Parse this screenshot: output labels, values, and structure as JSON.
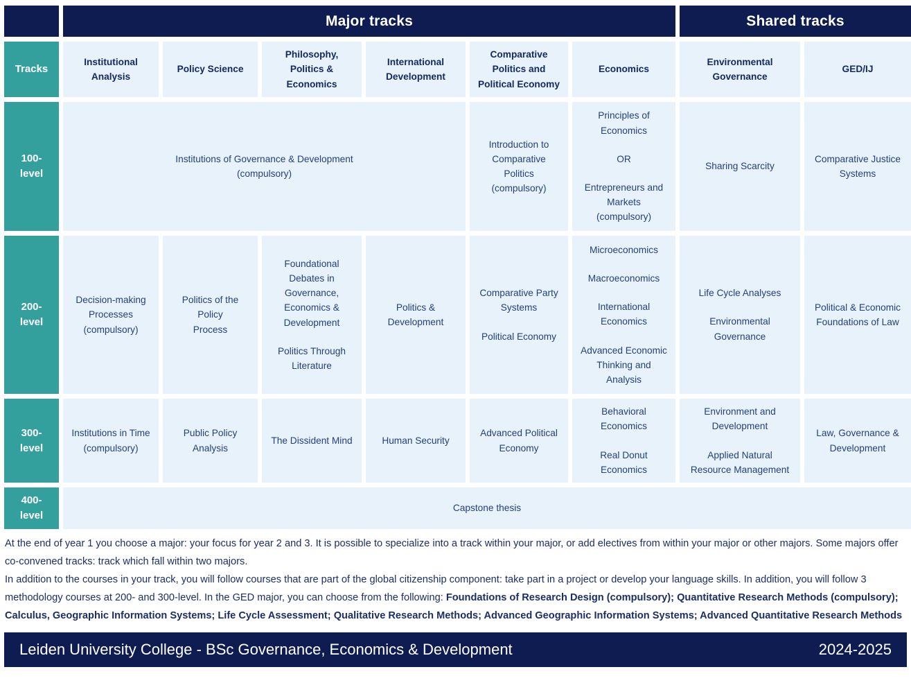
{
  "colors": {
    "navy": "#0e1c52",
    "teal": "#34a09e",
    "light_blue": "#e8f2fb",
    "course_text": "#23407f",
    "header_text": "#132a62",
    "white": "#ffffff"
  },
  "header": {
    "major_tracks_label": "Major tracks",
    "shared_tracks_label": "Shared tracks",
    "tracks_label": "Tracks",
    "columns": [
      "Institutional Analysis",
      "Policy Science",
      "Philosophy, Politics & Economics",
      "International Development",
      "Comparative Politics and Political Economy",
      "Economics",
      "Environmental Governance",
      "GED/IJ"
    ]
  },
  "levels": [
    "100-\nlevel",
    "200-\nlevel",
    "300-\nlevel",
    "400-\nlevel"
  ],
  "courses": {
    "level100": {
      "major_span": [
        "Institutions of Governance & Development\n(compulsory)"
      ],
      "comparative_politics": [
        "Introduction to Comparative Politics\n(compulsory)"
      ],
      "economics": [
        "Principles of Economics",
        "OR",
        "Entrepreneurs and Markets\n(compulsory)"
      ],
      "environmental_governance": [
        "Sharing Scarcity"
      ],
      "ged_ij": [
        "Comparative Justice Systems"
      ]
    },
    "level200": {
      "institutional_analysis": [
        "Decision-making Processes\n(compulsory)"
      ],
      "policy_science": [
        "Politics of the Policy\nProcess"
      ],
      "ppe": [
        "Foundational Debates in Governance, Economics & Development",
        "Politics Through Literature"
      ],
      "international_development": [
        "Politics & Development"
      ],
      "comparative_politics": [
        "Comparative Party Systems",
        "Political Economy"
      ],
      "economics": [
        "Microeconomics",
        "Macroeconomics",
        "International Economics",
        "Advanced Economic Thinking and Analysis"
      ],
      "environmental_governance": [
        "Life Cycle Analyses",
        "Environmental Governance"
      ],
      "ged_ij": [
        "Political & Economic Foundations of Law"
      ]
    },
    "level300": {
      "institutional_analysis": [
        "Institutions in Time\n(compulsory)"
      ],
      "policy_science": [
        "Public Policy Analysis"
      ],
      "ppe": [
        "The Dissident Mind"
      ],
      "international_development": [
        "Human Security"
      ],
      "comparative_politics": [
        "Advanced Political Economy"
      ],
      "economics": [
        "Behavioral Economics",
        "Real Donut Economics"
      ],
      "environmental_governance": [
        "Environment and Development",
        "Applied Natural Resource Management"
      ],
      "ged_ij": [
        "Law, Governance & Development"
      ]
    },
    "level400": {
      "all_tracks": [
        "Capstone thesis"
      ]
    }
  },
  "notes": {
    "p1": "At the end of year 1 you choose a major: your focus for year 2 and 3. It is possible to specialize into a track within your major, or add electives from within your major or other majors. Some majors offer co-convened tracks: track which fall within two majors.",
    "p2_regular": "In addition to the courses in your track, you will follow courses that are part of the global citizenship component: take part in a project or develop your language skills. In addition, you will follow 3 methodology courses at 200- and 300-level. In the GED major, you can choose from  the following: ",
    "p2_bold": "Foundations of Research Design (compulsory); Quantitative Research Methods (compulsory); Calculus, Geographic Information Systems; Life Cycle Assessment; Qualitative Research Methods; Advanced Geographic Information Systems; Advanced Quantitative Research Methods"
  },
  "footer": {
    "title": "Leiden University College - BSc Governance, Economics & Development",
    "year": "2024-2025"
  }
}
